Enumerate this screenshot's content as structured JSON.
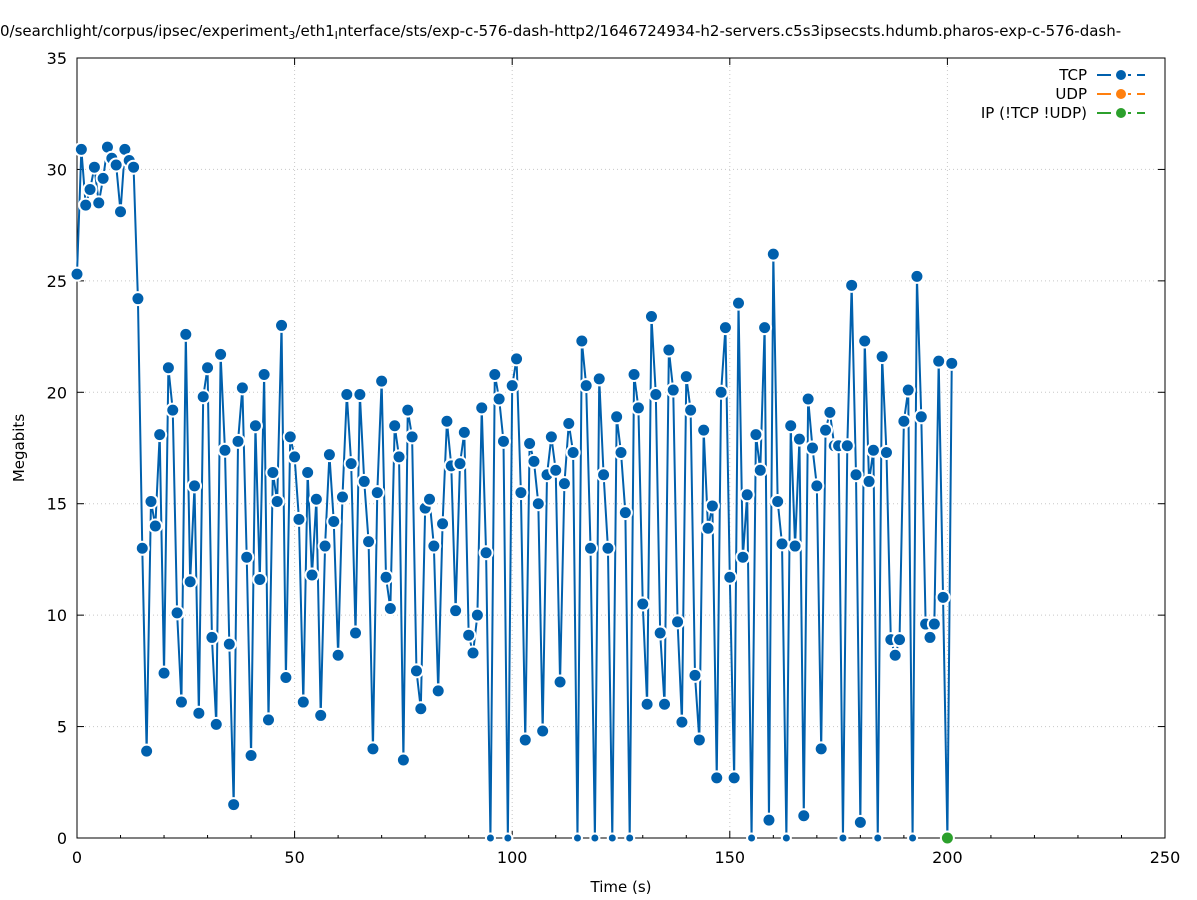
{
  "chart_data": {
    "type": "line",
    "title": "0/searchlight/corpus/ipsec/experiment3/eth1interface/sts/exp-c-576-dash-http2/1646724934-h2-servers.c5s3ipsecsts.hdumb.pharos-exp-c-576-dash-",
    "title_parts": [
      {
        "text": "0/searchlight/corpus/ipsec/experiment",
        "style": "normal"
      },
      {
        "text": "3",
        "style": "sub"
      },
      {
        "text": "/eth1",
        "style": "normal"
      },
      {
        "text": "I",
        "style": "sub"
      },
      {
        "text": "nterface/sts/exp-c-576-dash-http2/1646724934-h2-servers.c5s3ipsecsts.hdumb.pharos-exp-c-576-dash-",
        "style": "normal"
      }
    ],
    "xlabel": "Time (s)",
    "ylabel": "Megabits",
    "xlim": [
      0,
      250
    ],
    "ylim": [
      0,
      35
    ],
    "xticks": [
      0,
      50,
      100,
      150,
      200,
      250
    ],
    "yticks": [
      0,
      5,
      10,
      15,
      20,
      25,
      30,
      35
    ],
    "grid": true,
    "legend_position": "top-right",
    "series": [
      {
        "name": "TCP",
        "color": "#0060ad",
        "x": [
          0,
          1,
          2,
          3,
          4,
          5,
          6,
          7,
          8,
          9,
          10,
          11,
          12,
          13,
          14,
          15,
          16,
          17,
          18,
          19,
          20,
          21,
          22,
          23,
          24,
          25,
          26,
          27,
          28,
          29,
          30,
          31,
          32,
          33,
          34,
          35,
          36,
          37,
          38,
          39,
          40,
          41,
          42,
          43,
          44,
          45,
          46,
          47,
          48,
          49,
          50,
          51,
          52,
          53,
          54,
          55,
          56,
          57,
          58,
          59,
          60,
          61,
          62,
          63,
          64,
          65,
          66,
          67,
          68,
          69,
          70,
          71,
          72,
          73,
          74,
          75,
          76,
          77,
          78,
          79,
          80,
          81,
          82,
          83,
          84,
          85,
          86,
          87,
          88,
          89,
          90,
          91,
          92,
          93,
          94,
          95,
          96,
          97,
          98,
          99,
          100,
          101,
          102,
          103,
          104,
          105,
          106,
          107,
          108,
          109,
          110,
          111,
          112,
          113,
          114,
          115,
          116,
          117,
          118,
          119,
          120,
          121,
          122,
          123,
          124,
          125,
          126,
          127,
          128,
          129,
          130,
          131,
          132,
          133,
          134,
          135,
          136,
          137,
          138,
          139,
          140,
          141,
          142,
          143,
          144,
          145,
          146,
          147,
          148,
          149,
          150,
          151,
          152,
          153,
          154,
          155,
          156,
          157,
          158,
          159,
          160,
          161,
          162,
          163,
          164,
          165,
          166,
          167,
          168,
          169,
          170,
          171,
          172,
          173,
          174,
          175,
          176,
          177,
          178,
          179,
          180,
          181,
          182,
          183,
          184,
          185,
          186,
          187,
          188,
          189,
          190,
          191,
          192,
          193,
          194,
          195,
          196,
          197,
          198,
          199,
          200,
          201
        ],
        "values": [
          25.3,
          30.9,
          28.4,
          29.1,
          30.1,
          28.5,
          29.6,
          31.0,
          30.5,
          30.2,
          28.1,
          30.9,
          30.4,
          30.1,
          24.2,
          13.0,
          3.9,
          15.1,
          14.0,
          18.1,
          7.4,
          21.1,
          19.2,
          10.1,
          6.1,
          22.6,
          11.5,
          15.8,
          5.6,
          19.8,
          21.1,
          9.0,
          5.1,
          21.7,
          17.4,
          8.7,
          1.5,
          17.8,
          20.2,
          12.6,
          3.7,
          18.5,
          11.6,
          20.8,
          5.3,
          16.4,
          15.1,
          23.0,
          7.2,
          18.0,
          17.1,
          14.3,
          6.1,
          16.4,
          11.8,
          15.2,
          5.5,
          13.1,
          17.2,
          14.2,
          8.2,
          15.3,
          19.9,
          16.8,
          9.2,
          19.9,
          16.0,
          13.3,
          4.0,
          15.5,
          20.5,
          11.7,
          10.3,
          18.5,
          17.1,
          3.5,
          19.2,
          18.0,
          7.5,
          5.8,
          14.8,
          15.2,
          13.1,
          6.6,
          14.1,
          18.7,
          16.7,
          10.2,
          16.8,
          18.2,
          9.1,
          8.3,
          10.0,
          19.3,
          12.8,
          0.0,
          20.8,
          19.7,
          17.8,
          0.0,
          20.3,
          21.5,
          15.5,
          4.4,
          17.7,
          16.9,
          15.0,
          4.8,
          16.3,
          18.0,
          16.5,
          7.0,
          15.9,
          18.6,
          17.3,
          0.0,
          22.3,
          20.3,
          13.0,
          0.0,
          20.6,
          16.3,
          13.0,
          0.0,
          18.9,
          17.3,
          14.6,
          0.0,
          20.8,
          19.3,
          10.5,
          6.0,
          23.4,
          19.9,
          9.2,
          6.0,
          21.9,
          20.1,
          9.7,
          5.2,
          20.7,
          19.2,
          7.3,
          4.4,
          18.3,
          13.9,
          14.9,
          2.7,
          20.0,
          22.9,
          11.7,
          2.7,
          24.0,
          12.6,
          15.4,
          0.0,
          18.1,
          16.5,
          22.9,
          0.8,
          26.2,
          15.1,
          13.2,
          0.0,
          18.5,
          13.1,
          17.9,
          1.0,
          19.7,
          17.5,
          15.8,
          4.0,
          18.3,
          19.1,
          17.6,
          17.6,
          0.0,
          17.6,
          24.8,
          16.3,
          0.7,
          22.3,
          16.0,
          17.4,
          0.0,
          21.6,
          17.3,
          8.9,
          8.2,
          8.9,
          18.7,
          20.1,
          0.0,
          25.2,
          18.9,
          9.6,
          9.0,
          9.6,
          21.4,
          10.8,
          0.0,
          21.3
        ]
      },
      {
        "name": "UDP",
        "color": "#ff7f0e",
        "x": [],
        "values": []
      },
      {
        "name": "IP (!TCP  !UDP)",
        "color": "#2ca02c",
        "x": [
          200
        ],
        "values": [
          0
        ]
      }
    ]
  }
}
